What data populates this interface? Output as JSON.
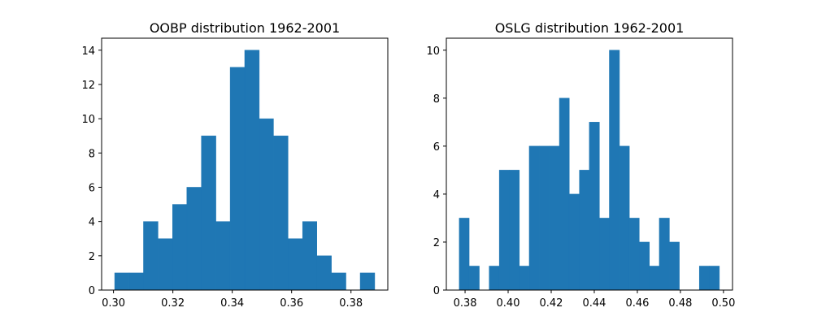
{
  "chart_data": [
    {
      "type": "histogram",
      "title": "OOBP distribution 1962-2001",
      "color": "#1f77b4",
      "bins": [
        0.3004,
        0.3053,
        0.3101,
        0.315,
        0.3199,
        0.3247,
        0.3296,
        0.3345,
        0.3393,
        0.3442,
        0.3491,
        0.3539,
        0.3588,
        0.3637,
        0.3685,
        0.3734,
        0.3783,
        0.3831,
        0.388
      ],
      "values": [
        1,
        1,
        4,
        3,
        5,
        6,
        9,
        4,
        13,
        14,
        10,
        9,
        3,
        4,
        2,
        1,
        0,
        1
      ],
      "xlim": [
        0.296,
        0.3924
      ],
      "xticks": [
        {
          "value": 0.3,
          "label": "0.30"
        },
        {
          "value": 0.32,
          "label": "0.32"
        },
        {
          "value": 0.34,
          "label": "0.34"
        },
        {
          "value": 0.36,
          "label": "0.36"
        },
        {
          "value": 0.38,
          "label": "0.38"
        }
      ],
      "ylim": [
        0,
        14.7
      ],
      "yticks": [
        0,
        2,
        4,
        6,
        8,
        10,
        12,
        14
      ]
    },
    {
      "type": "histogram",
      "title": "OSLG distribution 1962-2001",
      "color": "#1f77b4",
      "bins": [
        0.3773,
        0.3819,
        0.3866,
        0.3912,
        0.3959,
        0.4005,
        0.4052,
        0.4098,
        0.4145,
        0.4191,
        0.4238,
        0.4284,
        0.4331,
        0.4377,
        0.4424,
        0.447,
        0.4517,
        0.4563,
        0.4609,
        0.4656,
        0.4702,
        0.4749,
        0.4795,
        0.4842,
        0.4888,
        0.4935,
        0.4981
      ],
      "values": [
        3,
        1,
        0,
        1,
        5,
        5,
        1,
        6,
        6,
        6,
        8,
        4,
        5,
        7,
        3,
        10,
        6,
        3,
        2,
        1,
        3,
        2,
        0,
        0,
        1,
        1
      ],
      "xlim": [
        0.3713,
        0.5042
      ],
      "xticks": [
        {
          "value": 0.38,
          "label": "0.38"
        },
        {
          "value": 0.4,
          "label": "0.40"
        },
        {
          "value": 0.42,
          "label": "0.42"
        },
        {
          "value": 0.44,
          "label": "0.44"
        },
        {
          "value": 0.46,
          "label": "0.46"
        },
        {
          "value": 0.48,
          "label": "0.48"
        },
        {
          "value": 0.5,
          "label": "0.50"
        }
      ],
      "ylim": [
        0,
        10.5
      ],
      "yticks": [
        0,
        2,
        4,
        6,
        8,
        10
      ]
    }
  ]
}
